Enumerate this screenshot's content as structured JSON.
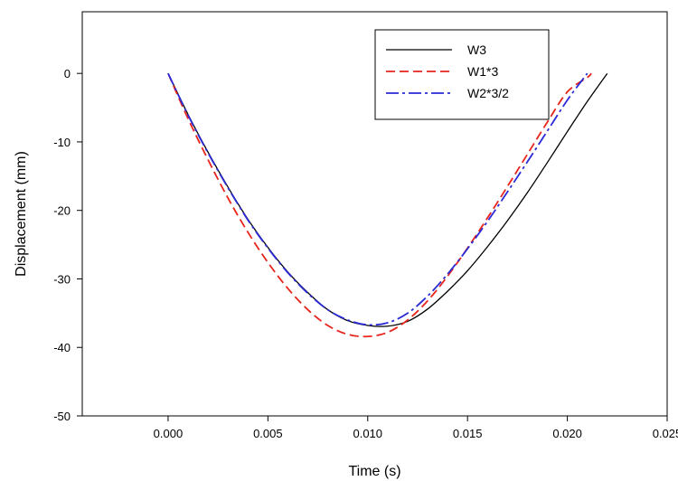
{
  "chart_data": {
    "type": "line",
    "title": "",
    "xlabel": "Time (s)",
    "ylabel": "Displacement (mm)",
    "xlim": [
      -0.0043,
      0.025
    ],
    "ylim": [
      -50,
      9
    ],
    "xticks": [
      0.0,
      0.005,
      0.01,
      0.015,
      0.02,
      0.025
    ],
    "xtick_labels": [
      "0.000",
      "0.005",
      "0.010",
      "0.015",
      "0.020",
      "0.025"
    ],
    "yticks": [
      0,
      -10,
      -20,
      -30,
      -40,
      -50
    ],
    "ytick_labels": [
      "0",
      "-10",
      "-20",
      "-30",
      "-40",
      "-50"
    ],
    "grid": false,
    "legend_position": "top-right",
    "series": [
      {
        "name": "W3",
        "color": "#000000",
        "dash": "solid",
        "x": [
          0,
          0.001,
          0.002,
          0.003,
          0.004,
          0.005,
          0.006,
          0.007,
          0.008,
          0.009,
          0.01,
          0.011,
          0.012,
          0.013,
          0.014,
          0.015,
          0.016,
          0.017,
          0.018,
          0.019,
          0.02,
          0.021,
          0.022
        ],
        "y": [
          0,
          -6.0,
          -11.5,
          -16.6,
          -21.3,
          -25.4,
          -29.0,
          -32.0,
          -34.5,
          -36.1,
          -36.8,
          -36.9,
          -36.2,
          -34.4,
          -31.8,
          -28.8,
          -25.3,
          -21.5,
          -17.4,
          -13.0,
          -8.5,
          -4.1,
          0
        ]
      },
      {
        "name": "W1*3",
        "color": "#e8241c",
        "dash": "long-dash",
        "x": [
          0,
          0.001,
          0.002,
          0.003,
          0.004,
          0.005,
          0.006,
          0.007,
          0.008,
          0.009,
          0.01,
          0.011,
          0.012,
          0.013,
          0.014,
          0.015,
          0.016,
          0.017,
          0.018,
          0.019,
          0.02,
          0.021,
          0.0212
        ],
        "y": [
          0,
          -6.6,
          -12.6,
          -18.2,
          -23.2,
          -27.6,
          -31.4,
          -34.5,
          -36.8,
          -38.1,
          -38.4,
          -37.8,
          -36.0,
          -33.2,
          -29.6,
          -25.5,
          -21.1,
          -16.5,
          -11.8,
          -7.1,
          -2.7,
          -0.6,
          0
        ]
      },
      {
        "name": "W2*3/2",
        "color": "#2a2ad6",
        "dash": "dash-dot",
        "x": [
          0,
          0.001,
          0.002,
          0.003,
          0.004,
          0.005,
          0.006,
          0.007,
          0.008,
          0.009,
          0.01,
          0.011,
          0.012,
          0.013,
          0.014,
          0.015,
          0.016,
          0.017,
          0.018,
          0.019,
          0.02,
          0.021
        ],
        "y": [
          0,
          -6.1,
          -11.6,
          -16.7,
          -21.4,
          -25.5,
          -29.1,
          -32.1,
          -34.5,
          -36.0,
          -36.7,
          -36.4,
          -35.0,
          -32.5,
          -29.3,
          -25.6,
          -21.6,
          -17.3,
          -12.9,
          -8.4,
          -3.9,
          0
        ]
      }
    ]
  }
}
